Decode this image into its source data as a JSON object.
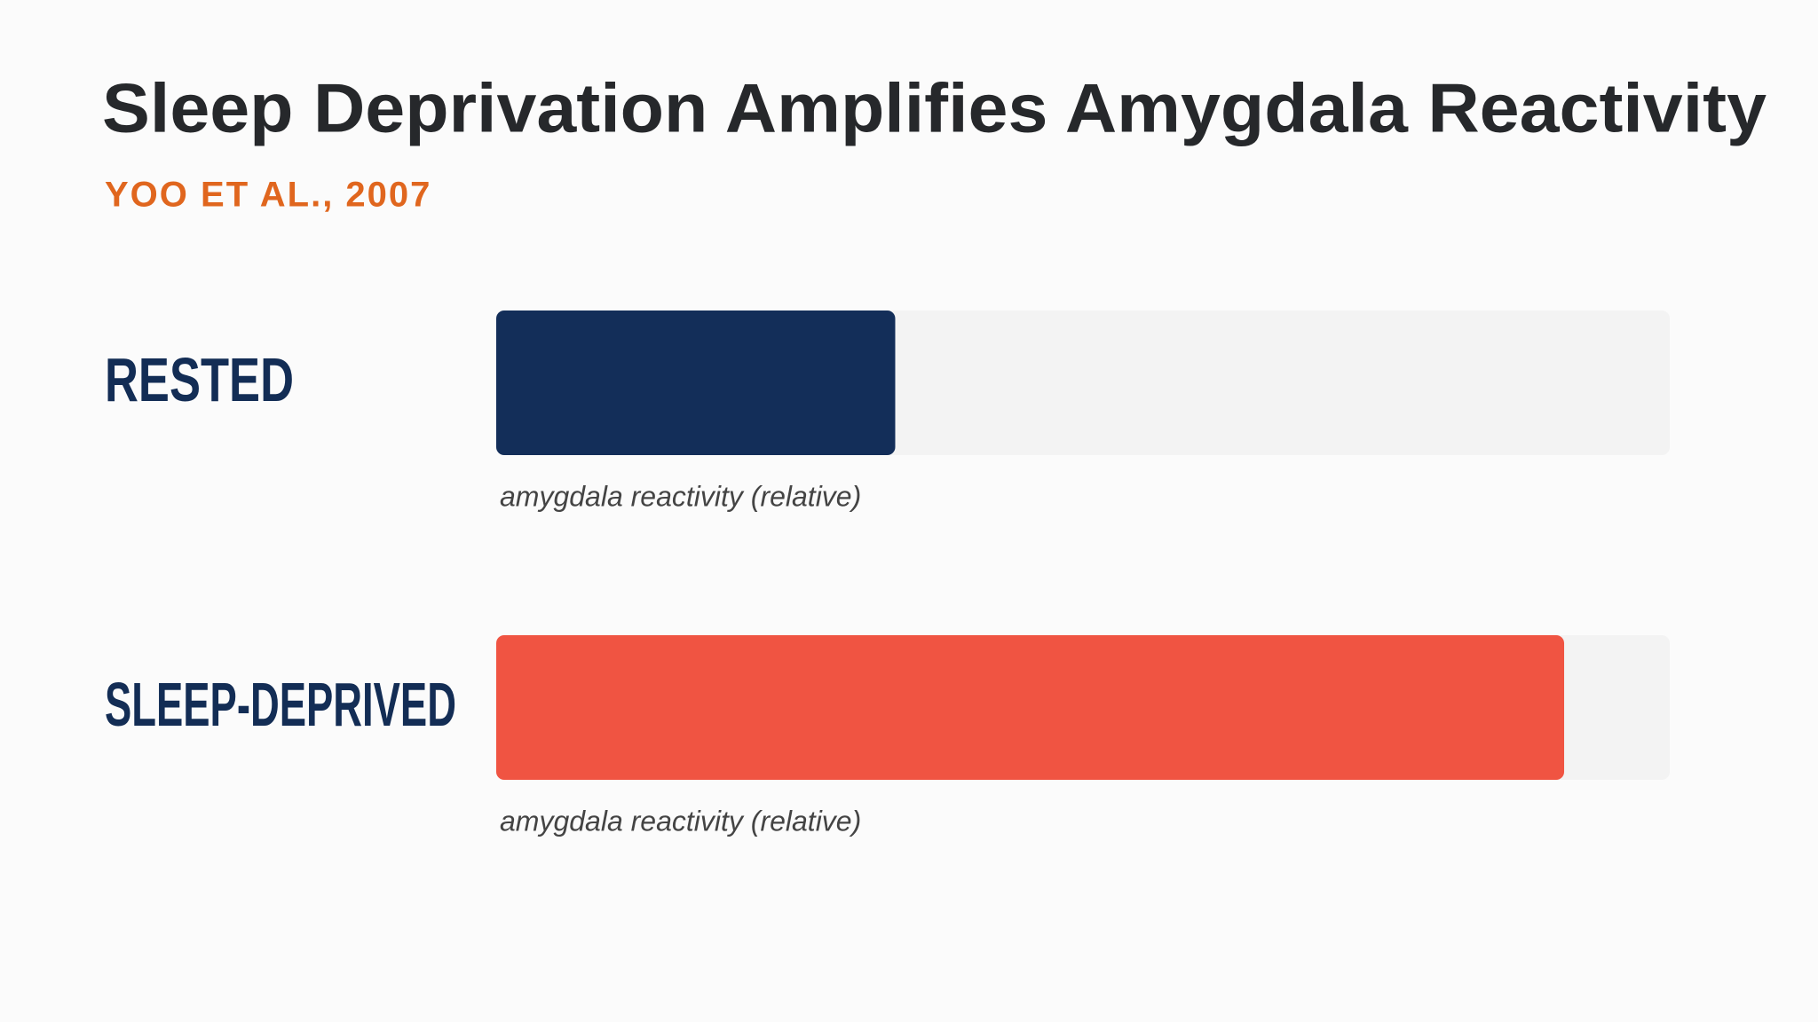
{
  "chart_data": {
    "type": "bar",
    "orientation": "horizontal",
    "title": "Sleep Deprivation Amplifies Amygdala Reactivity",
    "subtitle": "YOO ET AL., 2007",
    "categories": [
      "RESTED",
      "SLEEP-DEPRIVED"
    ],
    "values": [
      34,
      91
    ],
    "colors": [
      "#132e59",
      "#f05442"
    ],
    "bar_captions": [
      "amygdala reactivity (relative)",
      "amygdala reactivity (relative)"
    ],
    "xlim": [
      0,
      100
    ]
  }
}
